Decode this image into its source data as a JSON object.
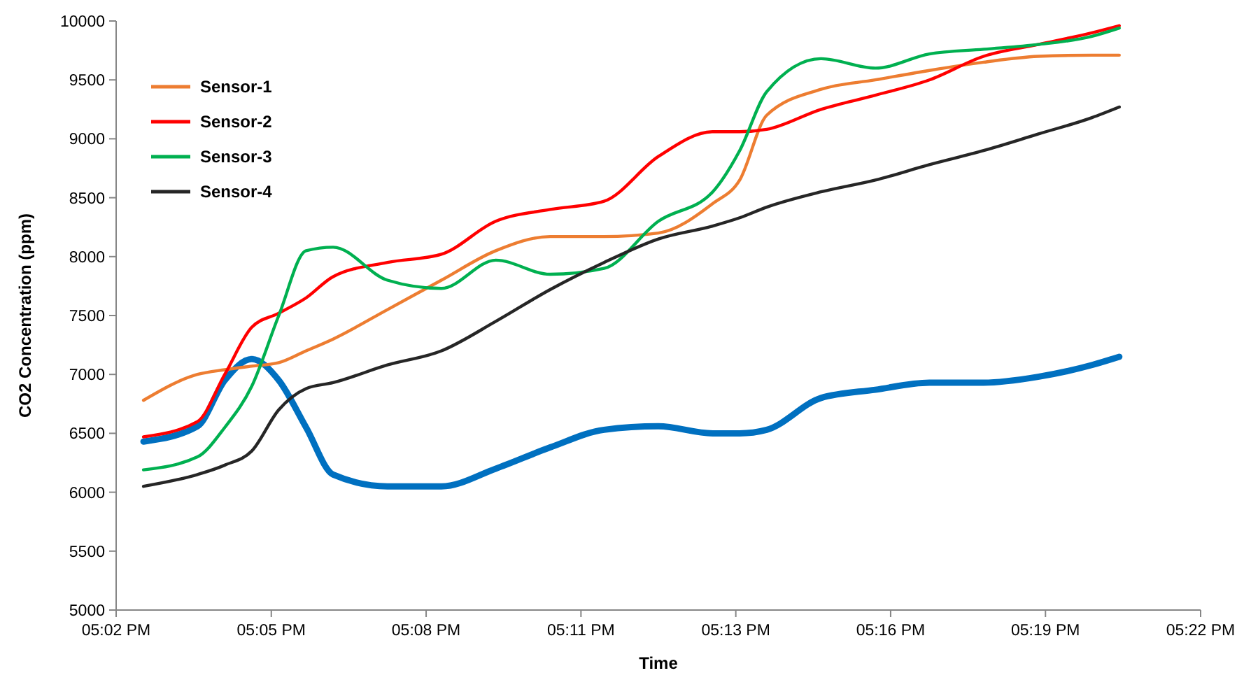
{
  "chart_data": {
    "type": "line",
    "xlabel": "Time",
    "ylabel": "CO2 Concentration (ppm)",
    "x": [
      17.0417,
      17.0583,
      17.0667,
      17.075,
      17.0833,
      17.0917,
      17.1,
      17.1167,
      17.1333,
      17.15,
      17.1667,
      17.1833,
      17.2,
      17.2167,
      17.225,
      17.2333,
      17.25,
      17.2667,
      17.2833,
      17.3,
      17.3167,
      17.3333,
      17.3417
    ],
    "series": [
      {
        "color": "#0070c0",
        "values": [
          6430,
          6560,
          6950,
          7130,
          6950,
          6550,
          6150,
          6050,
          6050,
          6200,
          6380,
          6530,
          6560,
          6500,
          6500,
          6530,
          6800,
          6870,
          6930,
          6930,
          6980,
          7080,
          7150
        ]
      },
      {
        "name": "Sensor-1",
        "color": "#ed7d31",
        "values": [
          6780,
          7000,
          7040,
          7070,
          7100,
          7200,
          7300,
          7550,
          7800,
          8050,
          8170,
          8170,
          8200,
          8450,
          8650,
          9200,
          9420,
          9500,
          9580,
          9650,
          9700,
          9710,
          9710
        ]
      },
      {
        "name": "Sensor-2",
        "color": "#ff0000",
        "values": [
          6470,
          6600,
          7000,
          7400,
          7520,
          7650,
          7830,
          7950,
          8020,
          8300,
          8400,
          8470,
          8850,
          9060,
          9060,
          9080,
          9250,
          9370,
          9500,
          9700,
          9800,
          9900,
          9960
        ]
      },
      {
        "name": "Sensor-3",
        "color": "#00b050",
        "values": [
          6190,
          6300,
          6550,
          6900,
          7500,
          8050,
          8080,
          7800,
          7730,
          7970,
          7850,
          7900,
          8300,
          8550,
          8900,
          9400,
          9680,
          9600,
          9720,
          9760,
          9800,
          9870,
          9940
        ]
      },
      {
        "name": "Sensor-4",
        "color": "#262626",
        "values": [
          6050,
          6150,
          6230,
          6350,
          6700,
          6880,
          6930,
          7080,
          7200,
          7450,
          7720,
          7950,
          8150,
          8260,
          8330,
          8420,
          8550,
          8650,
          8780,
          8900,
          9040,
          9180,
          9270
        ]
      }
    ],
    "xlim": [
      17.0333,
      17.3667
    ],
    "xticks": [
      {
        "value": 17.0333,
        "label": "05:02 PM"
      },
      {
        "value": 17.081,
        "label": "05:05 PM"
      },
      {
        "value": 17.1286,
        "label": "05:08 PM"
      },
      {
        "value": 17.1762,
        "label": "05:11 PM"
      },
      {
        "value": 17.2238,
        "label": "05:13 PM"
      },
      {
        "value": 17.2714,
        "label": "05:16 PM"
      },
      {
        "value": 17.319,
        "label": "05:19 PM"
      },
      {
        "value": 17.3667,
        "label": "05:22 PM"
      }
    ],
    "ylim": [
      5000,
      10000
    ],
    "yticks": [
      5000,
      5500,
      6000,
      6500,
      7000,
      7500,
      8000,
      8500,
      9000,
      9500,
      10000
    ],
    "legend": "top left",
    "grid": false,
    "marker": "none",
    "line_style": "solid"
  }
}
